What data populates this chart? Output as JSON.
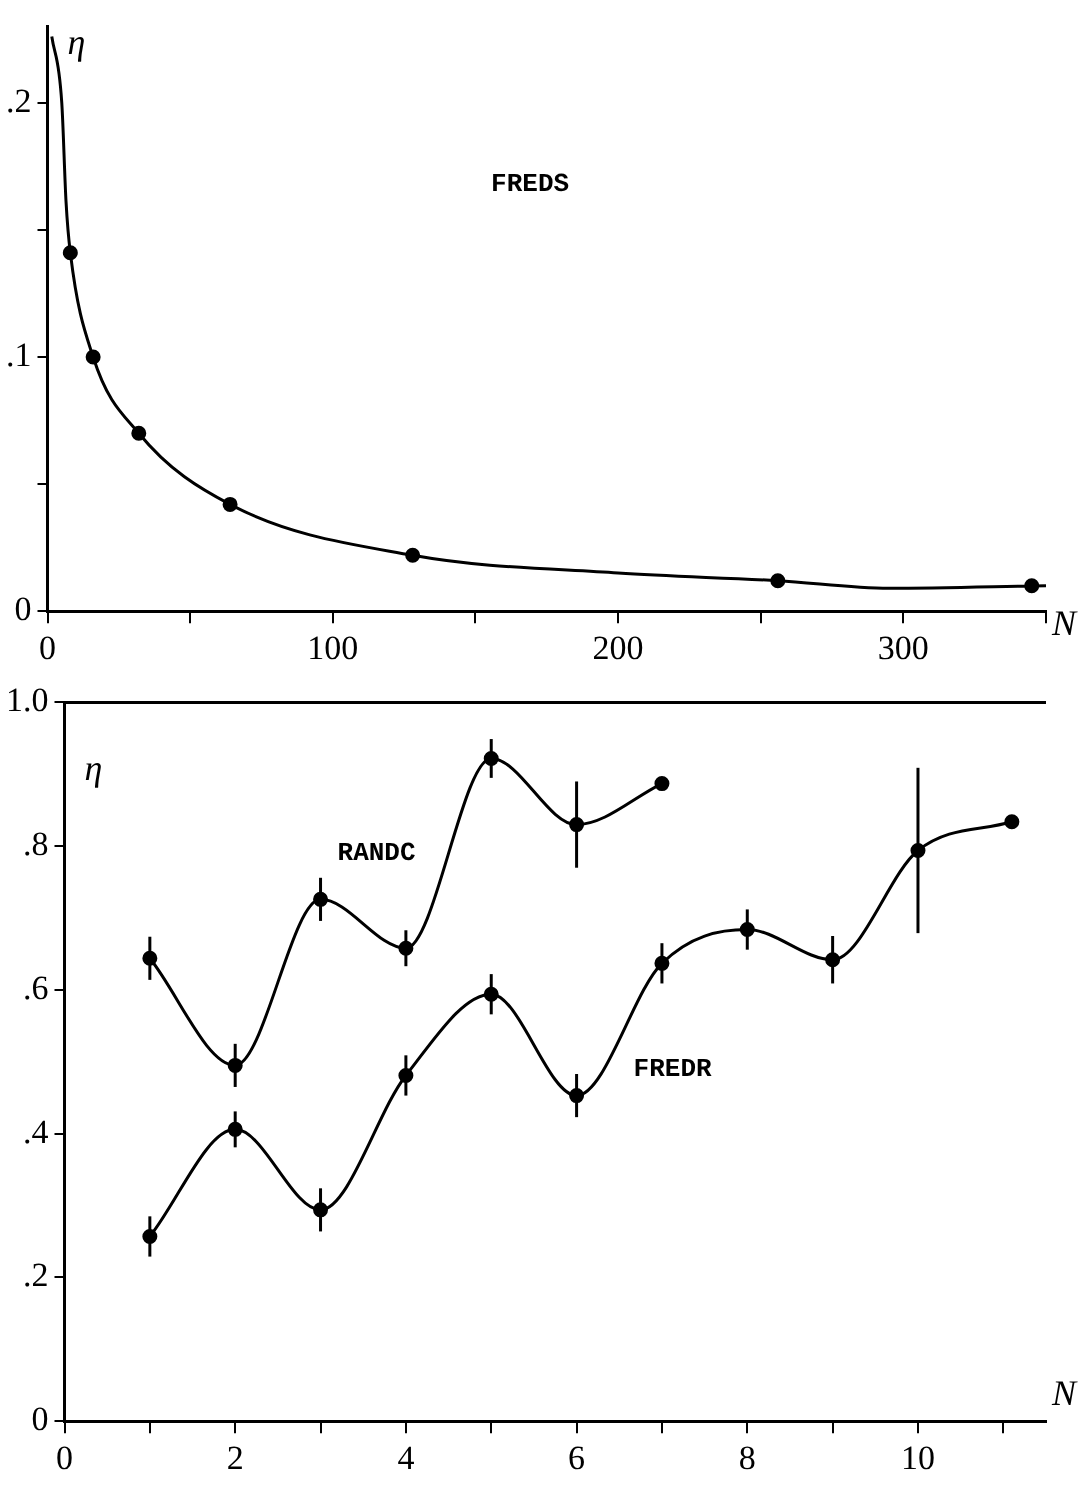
{
  "chart_data": [
    {
      "type": "line",
      "xlabel": "N",
      "ylabel": "η",
      "xlim": [
        0,
        350
      ],
      "ylim": [
        0,
        0.23
      ],
      "xticks": [
        0,
        {
          "value": 50,
          "label": null
        },
        100,
        {
          "value": 150,
          "label": null
        },
        200,
        {
          "value": 250,
          "label": null
        },
        300,
        {
          "value": 350,
          "label": null
        }
      ],
      "yticks": [
        0,
        {
          "value": 0.05,
          "label": null
        },
        {
          "value": 0.1,
          "label": ".1"
        },
        {
          "value": 0.15,
          "label": null
        },
        {
          "value": 0.2,
          "label": ".2"
        }
      ],
      "series": [
        {
          "name": "FREDS",
          "type": "scatter",
          "marker": "circle",
          "color": "#000000",
          "x": [
            8,
            16,
            32,
            64,
            128,
            256,
            345
          ],
          "values": [
            0.141,
            0.1,
            0.07,
            0.042,
            0.022,
            0.012,
            0.01
          ]
        },
        {
          "type": "line",
          "marker": "none",
          "color": "#000000",
          "x": [
            1.5,
            5,
            6.5,
            8,
            16,
            32,
            64,
            128,
            200,
            256,
            295,
            350
          ],
          "values": [
            0.226,
            0.2,
            0.161,
            0.141,
            0.1,
            0.07,
            0.042,
            0.022,
            0.015,
            0.012,
            0.009,
            0.01
          ]
        }
      ]
    },
    {
      "type": "line",
      "xlabel": "N",
      "ylabel": "η",
      "xlim": [
        0,
        11.5
      ],
      "ylim": [
        0,
        1.0
      ],
      "marker": "circle",
      "xticks": [
        0,
        {
          "value": 1,
          "label": null
        },
        2,
        {
          "value": 3,
          "label": null
        },
        4,
        {
          "value": 5,
          "label": null
        },
        6,
        {
          "value": 7,
          "label": null
        },
        8,
        {
          "value": 9,
          "label": null
        },
        10,
        {
          "value": 11,
          "label": null
        }
      ],
      "yticks": [
        0,
        {
          "value": 0.2,
          "label": ".2"
        },
        {
          "value": 0.4,
          "label": ".4"
        },
        {
          "value": 0.6,
          "label": ".6"
        },
        {
          "value": 0.8,
          "label": ".8"
        },
        {
          "value": 1.0,
          "label": "1.0"
        }
      ],
      "series": [
        {
          "name": "RANDC",
          "color": "#000000",
          "x": [
            1,
            2,
            3,
            4,
            5,
            6,
            7
          ],
          "values": [
            0.644,
            0.495,
            0.726,
            0.658,
            0.922,
            0.83,
            0.887
          ],
          "errors": [
            0.03,
            0.03,
            0.03,
            0.025,
            0.027,
            0.06,
            null
          ]
        },
        {
          "name": "FREDR",
          "color": "#000000",
          "x": [
            1,
            2,
            3,
            4,
            5,
            6,
            7,
            8,
            9,
            10,
            11.1
          ],
          "values": [
            0.257,
            0.406,
            0.294,
            0.481,
            0.594,
            0.453,
            0.637,
            0.684,
            0.642,
            0.794,
            0.834
          ],
          "errors": [
            0.028,
            0.025,
            0.03,
            0.028,
            0.028,
            0.03,
            0.028,
            0.028,
            0.033,
            0.115,
            null
          ]
        }
      ]
    }
  ]
}
